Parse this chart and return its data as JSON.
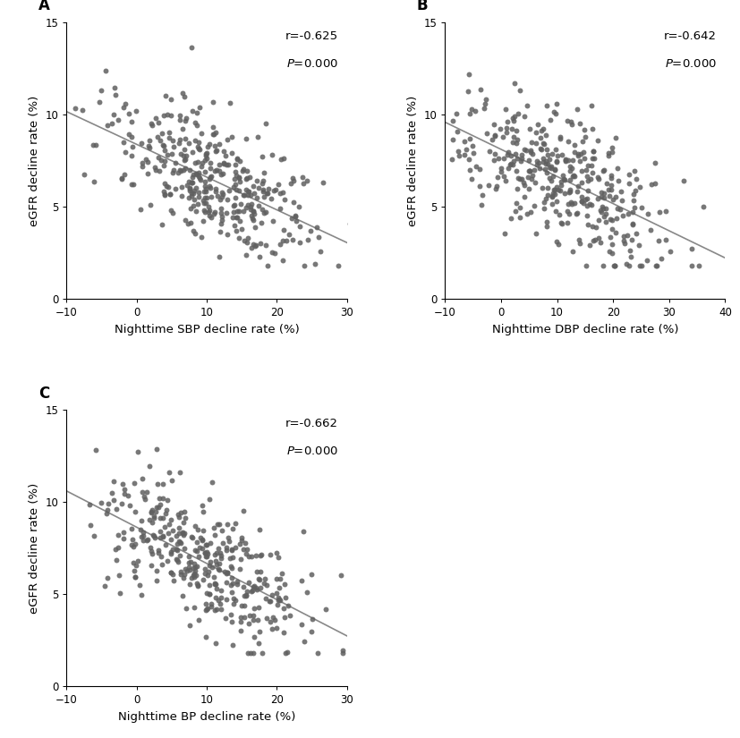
{
  "panels": [
    {
      "label": "A",
      "xlabel": "Nighttime SBP decline rate (%)",
      "ylabel": "eGFR decline rate (%)",
      "r": -0.625,
      "r_text": "r=-0.625",
      "p_text": "P=0.000",
      "xlim": [
        -10,
        30
      ],
      "ylim": [
        0,
        15
      ],
      "xticks": [
        -10,
        0,
        10,
        20,
        30
      ],
      "yticks": [
        0,
        5,
        10,
        15
      ],
      "n": 380,
      "x_mean": 10.5,
      "x_std": 7.5,
      "y_mean": 6.5,
      "y_std": 2.2,
      "seed": 42
    },
    {
      "label": "B",
      "xlabel": "Nighttime DBP decline rate (%)",
      "ylabel": "eGFR decline rate (%)",
      "r": -0.642,
      "r_text": "r=-0.642",
      "p_text": "P=0.000",
      "xlim": [
        -10,
        40
      ],
      "ylim": [
        0,
        15
      ],
      "xticks": [
        -10,
        0,
        10,
        20,
        30,
        40
      ],
      "yticks": [
        0,
        5,
        10,
        15
      ],
      "n": 380,
      "x_mean": 11.0,
      "x_std": 9.0,
      "y_mean": 6.5,
      "y_std": 2.2,
      "seed": 101
    },
    {
      "label": "C",
      "xlabel": "Nighttime BP decline rate (%)",
      "ylabel": "eGFR decline rate (%)",
      "r": -0.662,
      "r_text": "r=-0.662",
      "p_text": "P=0.000",
      "xlim": [
        -10,
        30
      ],
      "ylim": [
        0,
        15
      ],
      "xticks": [
        -10,
        0,
        10,
        20,
        30
      ],
      "yticks": [
        0,
        5,
        10,
        15
      ],
      "n": 380,
      "x_mean": 10.5,
      "x_std": 7.5,
      "y_mean": 6.5,
      "y_std": 2.2,
      "seed": 88
    }
  ],
  "dot_color": "#606060",
  "dot_size": 18,
  "dot_alpha": 0.85,
  "line_color": "#888888",
  "line_width": 1.2,
  "background_color": "#ffffff",
  "xlabel_fontsize": 9.5,
  "ylabel_fontsize": 9.5,
  "tick_fontsize": 8.5,
  "annot_fontsize": 9.5,
  "panel_label_fontsize": 12
}
